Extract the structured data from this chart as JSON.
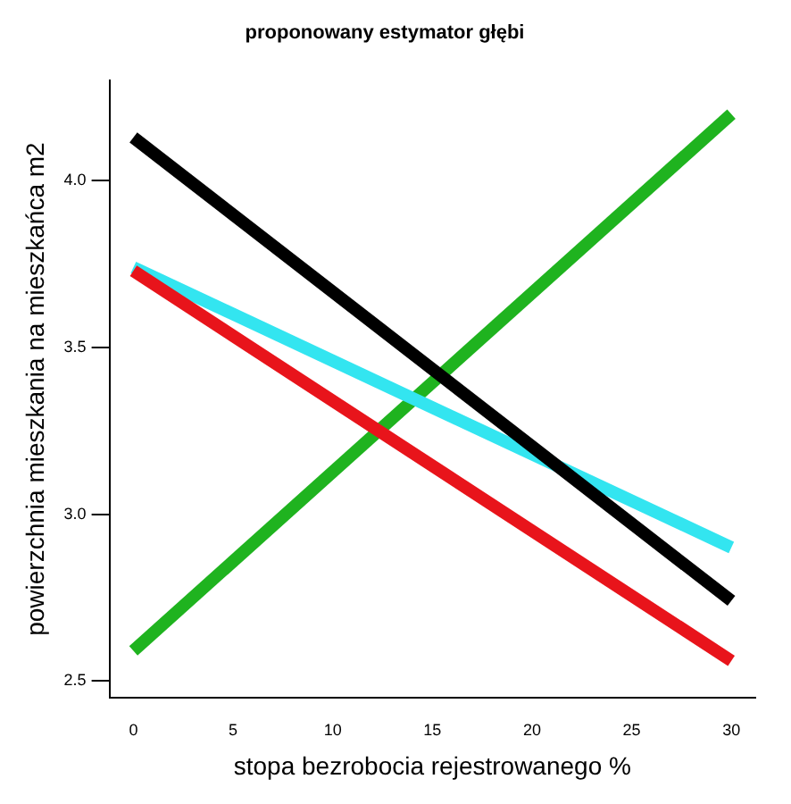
{
  "chart_data": {
    "type": "line",
    "title": "proponowany estymator głębi",
    "xlabel": "stopa bezrobocia rejestrowanego %",
    "ylabel": "powierzchnia mieszkania na mieszkańca m2",
    "x": [
      0,
      30
    ],
    "series": [
      {
        "color": "#000000",
        "values": [
          4.13,
          2.74
        ]
      },
      {
        "color": "#e8141b",
        "values": [
          3.73,
          2.56
        ]
      },
      {
        "color": "#33e5f0",
        "values": [
          3.74,
          2.9
        ]
      },
      {
        "color": "#1fb31f",
        "values": [
          2.59,
          4.2
        ]
      }
    ],
    "xlim": [
      -1.2,
      31.2
    ],
    "xticks": [
      0,
      5,
      10,
      15,
      20,
      25,
      30
    ],
    "ylim": [
      2.45,
      4.3
    ],
    "yticks": [
      2.5,
      {
        "value": 3,
        "label": "3.0"
      },
      3.5,
      {
        "value": 4,
        "label": "4.0"
      }
    ],
    "grid": false,
    "legend": false,
    "marker": "none",
    "line_style": "solid"
  }
}
